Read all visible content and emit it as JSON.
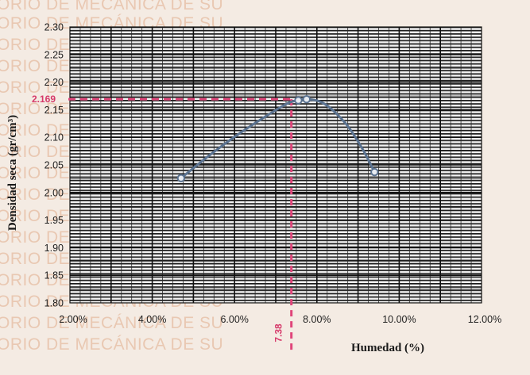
{
  "watermark": {
    "lines": [
      "ORIO DE MECÁNICA DE SU",
      "ORIO DE MECÁNICA DE SU",
      "ORIO DE MECÁNICA DE SU",
      "ORIO DE MECÁNICA DE SU",
      "ORIO DE MECÁNICA DE SU",
      "ORIO DE MECÁNICA DE SU",
      "ORIO DE MECÁNICA DE SU",
      "ORIO DE MECÁNICA DE SU",
      "ORIO DE MECÁNICA DE SU",
      "ORIO DE MECÁNICA DE SU",
      "ORIO DE MECÁNICA DE SU",
      "ORIO DE MECÁNICA DE SU",
      "ORIO DE MECÁNICA DE SU",
      "ORIO DE MECÁNICA DE SU",
      "ORIO DE MECÁNICA DE SU",
      "ORIO DE MECÁNICA DE SU",
      "ORIO DE MECÁNICA DE SU"
    ]
  },
  "chart_data": {
    "type": "line",
    "title": "",
    "xlabel": "Humedad (%)",
    "ylabel": "Densidad seca (gr/cm³)",
    "xlim": [
      2.0,
      12.0
    ],
    "ylim": [
      1.8,
      2.3
    ],
    "x_ticks": [
      2,
      4,
      6,
      8,
      10,
      12
    ],
    "x_tick_labels": [
      "2.00%",
      "4.00%",
      "6.00%",
      "8.00%",
      "10.00%",
      "12.00%"
    ],
    "y_ticks": [
      1.8,
      1.85,
      1.9,
      1.95,
      2.0,
      2.05,
      2.1,
      2.15,
      2.2,
      2.25,
      2.3
    ],
    "y_tick_labels": [
      "1.80",
      "1.85",
      "1.90",
      "1.95",
      "2.00",
      "2.05",
      "2.10",
      "2.15",
      "2.20",
      "2.25",
      "2.30"
    ],
    "grid": true,
    "series": [
      {
        "color": "#5a7290",
        "points": [
          {
            "x": 4.7,
            "y": 2.026
          },
          {
            "x": 5.4,
            "y": 2.068
          },
          {
            "x": 6.1,
            "y": 2.106
          },
          {
            "x": 6.8,
            "y": 2.14
          },
          {
            "x": 7.3,
            "y": 2.162
          },
          {
            "x": 7.55,
            "y": 2.167
          },
          {
            "x": 7.8,
            "y": 2.169
          },
          {
            "x": 8.2,
            "y": 2.16
          },
          {
            "x": 8.7,
            "y": 2.125
          },
          {
            "x": 9.1,
            "y": 2.08
          },
          {
            "x": 9.4,
            "y": 2.037
          }
        ],
        "markers": [
          {
            "x": 4.7,
            "y": 2.026
          },
          {
            "x": 7.55,
            "y": 2.167
          },
          {
            "x": 7.75,
            "y": 2.169
          },
          {
            "x": 9.4,
            "y": 2.037
          }
        ]
      }
    ],
    "reference_lines": {
      "color": "#e0457a",
      "y_value": 2.169,
      "y_label": "2.169",
      "x_value": 7.38,
      "x_label": "7.38"
    }
  }
}
